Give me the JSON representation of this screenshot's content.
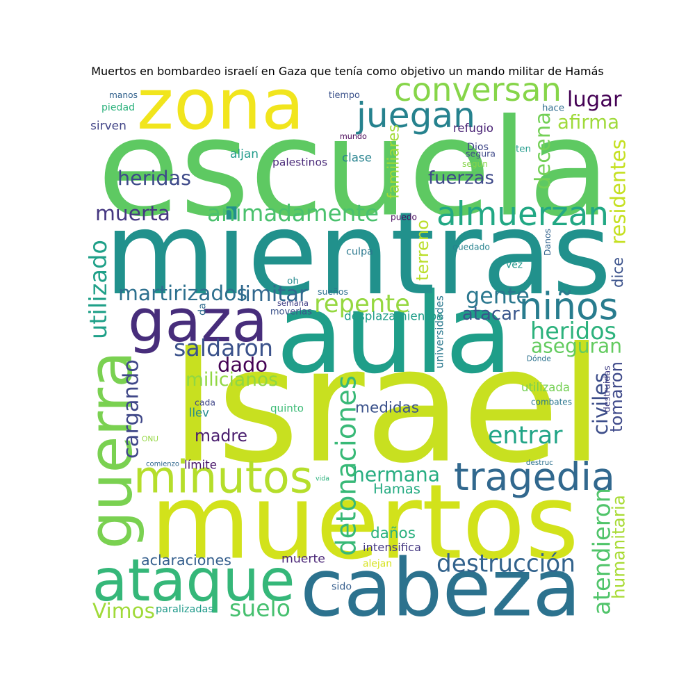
{
  "chart_data": {
    "type": "wordcloud",
    "title": "Muertos en bombardeo israelí en Gaza que tenía como objetivo un mando militar de Hamás",
    "words": [
      {
        "text": "Israel",
        "color": "#c8e020"
      },
      {
        "text": "escuela",
        "color": "#5ec962"
      },
      {
        "text": "aula",
        "color": "#1f9e89"
      },
      {
        "text": "mientras",
        "color": "#21918c"
      },
      {
        "text": "muertos",
        "color": "#d2e21b"
      },
      {
        "text": "cabeza",
        "color": "#2c728e"
      },
      {
        "text": "zona",
        "color": "#f1e51d"
      },
      {
        "text": "gaza",
        "color": "#472d7b"
      },
      {
        "text": "guerra",
        "color": "#7ad151"
      },
      {
        "text": "ataque",
        "color": "#35b779"
      },
      {
        "text": "minutos",
        "color": "#b5de2b"
      },
      {
        "text": "tragedia",
        "color": "#31688e"
      },
      {
        "text": "juegan",
        "color": "#26828e"
      },
      {
        "text": "conversan",
        "color": "#86d549"
      },
      {
        "text": "almuerzan",
        "color": "#22a884"
      },
      {
        "text": "animadamente",
        "color": "#4ac16d"
      },
      {
        "text": "niños",
        "color": "#287c8e"
      },
      {
        "text": "repente",
        "color": "#95d840"
      },
      {
        "text": "heridos",
        "color": "#2db27d"
      },
      {
        "text": "saldaron",
        "color": "#3b528b"
      },
      {
        "text": "destrucción",
        "color": "#33638d"
      },
      {
        "text": "hermana",
        "color": "#27ad81"
      },
      {
        "text": "entrar",
        "color": "#20a486"
      },
      {
        "text": "detonaciones",
        "color": "#38b977"
      },
      {
        "text": "atendieron",
        "color": "#50c46a"
      },
      {
        "text": "humanitaria",
        "color": "#a8db34"
      },
      {
        "text": "muerta",
        "color": "#453781"
      },
      {
        "text": "heridas",
        "color": "#3e4a89"
      },
      {
        "text": "lugar",
        "color": "#440154"
      },
      {
        "text": "afirma",
        "color": "#9fda3a"
      },
      {
        "text": "decena",
        "color": "#73d056"
      },
      {
        "text": "fuerzas",
        "color": "#3e4989"
      },
      {
        "text": "residentes",
        "color": "#c5e021"
      },
      {
        "text": "utilizado",
        "color": "#1fa088"
      },
      {
        "text": "martirizados",
        "color": "#2d708e"
      },
      {
        "text": "limitar",
        "color": "#31688e"
      },
      {
        "text": "gente",
        "color": "#2a778e"
      },
      {
        "text": "atacar",
        "color": "#39568c"
      },
      {
        "text": "aseguran",
        "color": "#63cb5f"
      },
      {
        "text": "dado",
        "color": "#440154"
      },
      {
        "text": "milicianos",
        "color": "#90d743"
      },
      {
        "text": "cargando",
        "color": "#3f4788"
      },
      {
        "text": "medidas",
        "color": "#3b528b"
      },
      {
        "text": "madre",
        "color": "#481b6d"
      },
      {
        "text": "daños",
        "color": "#2ab07f"
      },
      {
        "text": "Hamas",
        "color": "#25ab82"
      },
      {
        "text": "Vimos",
        "color": "#a0da39"
      },
      {
        "text": "suelo",
        "color": "#46c06f"
      },
      {
        "text": "aclaraciones",
        "color": "#355f8d"
      },
      {
        "text": "muerte",
        "color": "#482475"
      },
      {
        "text": "dice",
        "color": "#3b528b"
      },
      {
        "text": "civiles",
        "color": "#3d4e8a"
      },
      {
        "text": "tomaron",
        "color": "#3e4989"
      },
      {
        "text": "terreno",
        "color": "#bade28"
      },
      {
        "text": "familiares",
        "color": "#a2da37"
      },
      {
        "text": "universidades",
        "color": "#2a788e"
      },
      {
        "text": "manos",
        "color": "#33628d"
      },
      {
        "text": "piedad",
        "color": "#2db27d"
      },
      {
        "text": "sirven",
        "color": "#414487"
      },
      {
        "text": "aljan",
        "color": "#1f9a8a"
      },
      {
        "text": "palestinos",
        "color": "#482878"
      },
      {
        "text": "clase",
        "color": "#26828e"
      },
      {
        "text": "tiempo",
        "color": "#3b528b"
      },
      {
        "text": "mundo",
        "color": "#440154"
      },
      {
        "text": "refugio",
        "color": "#482173"
      },
      {
        "text": "Dios",
        "color": "#3f4788"
      },
      {
        "text": "segura",
        "color": "#3e4989"
      },
      {
        "text": "según",
        "color": "#86d549"
      },
      {
        "text": "hace",
        "color": "#2f6c8e"
      },
      {
        "text": "ten",
        "color": "#1f9a8a"
      },
      {
        "text": "puedo",
        "color": "#46085c"
      },
      {
        "text": "culpa",
        "color": "#2a788e"
      },
      {
        "text": "quedado",
        "color": "#26828e"
      },
      {
        "text": "Danos",
        "color": "#33638d"
      },
      {
        "text": "vez",
        "color": "#1f968b"
      },
      {
        "text": "oh",
        "color": "#23898e"
      },
      {
        "text": "sueños",
        "color": "#2d708e"
      },
      {
        "text": "semana",
        "color": "#424086"
      },
      {
        "text": "da",
        "color": "#2f6b8e"
      },
      {
        "text": "moverlas",
        "color": "#3b528b"
      },
      {
        "text": "desplazamientos",
        "color": "#1f9e89"
      },
      {
        "text": "Dónde",
        "color": "#2c728e"
      },
      {
        "text": "utilizada",
        "color": "#75d054"
      },
      {
        "text": "destruidas",
        "color": "#423f85"
      },
      {
        "text": "combates",
        "color": "#2a768e"
      },
      {
        "text": "cada",
        "color": "#404688"
      },
      {
        "text": "llev",
        "color": "#23898e"
      },
      {
        "text": "quinto",
        "color": "#3bbb75"
      },
      {
        "text": "ONU",
        "color": "#93d741"
      },
      {
        "text": "comienzo",
        "color": "#31688e"
      },
      {
        "text": "límite",
        "color": "#481668"
      },
      {
        "text": "destruc",
        "color": "#2d708e"
      },
      {
        "text": "vida",
        "color": "#2db27d"
      },
      {
        "text": "intensifica",
        "color": "#453882"
      },
      {
        "text": "alejan",
        "color": "#d5e21a"
      },
      {
        "text": "sido",
        "color": "#355e8d"
      },
      {
        "text": "paralizadas",
        "color": "#1f9a8a"
      }
    ]
  }
}
